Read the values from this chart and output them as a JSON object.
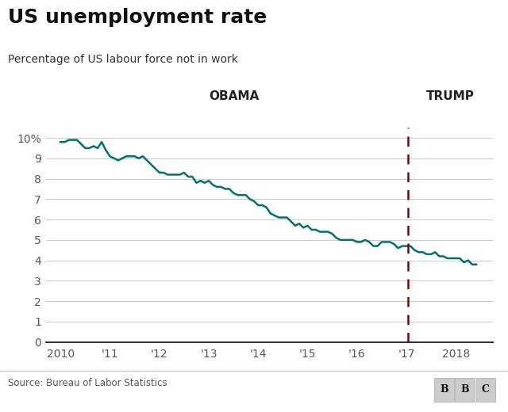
{
  "title": "US unemployment rate",
  "subtitle": "Percentage of US labour force not in work",
  "source": "Source: Bureau of Labor Statistics",
  "line_color": "#007070",
  "divider_color": "#8B0000",
  "obama_label": "OBAMA",
  "trump_label": "TRUMP",
  "trump_start": 2017.04,
  "ylim": [
    0,
    10.5
  ],
  "yticks": [
    0,
    1,
    2,
    3,
    4,
    5,
    6,
    7,
    8,
    9,
    10
  ],
  "ytick_labels": [
    "0",
    "1",
    "2",
    "3",
    "4",
    "5",
    "6",
    "7",
    "8",
    "9",
    "10%"
  ],
  "xtick_positions": [
    2010,
    2011,
    2012,
    2013,
    2014,
    2015,
    2016,
    2017,
    2018
  ],
  "xtick_labels": [
    "2010",
    "'11",
    "'12",
    "'13",
    "'14",
    "'15",
    "'16",
    "'17",
    "2018"
  ],
  "xlim": [
    2009.7,
    2018.75
  ],
  "background_color": "#ffffff",
  "title_fontsize": 18,
  "subtitle_fontsize": 10,
  "tick_fontsize": 10,
  "label_fontsize": 11,
  "data": {
    "dates": [
      2010.0,
      2010.083,
      2010.167,
      2010.25,
      2010.333,
      2010.417,
      2010.5,
      2010.583,
      2010.667,
      2010.75,
      2010.833,
      2010.917,
      2011.0,
      2011.083,
      2011.167,
      2011.25,
      2011.333,
      2011.417,
      2011.5,
      2011.583,
      2011.667,
      2011.75,
      2011.833,
      2011.917,
      2012.0,
      2012.083,
      2012.167,
      2012.25,
      2012.333,
      2012.417,
      2012.5,
      2012.583,
      2012.667,
      2012.75,
      2012.833,
      2012.917,
      2013.0,
      2013.083,
      2013.167,
      2013.25,
      2013.333,
      2013.417,
      2013.5,
      2013.583,
      2013.667,
      2013.75,
      2013.833,
      2013.917,
      2014.0,
      2014.083,
      2014.167,
      2014.25,
      2014.333,
      2014.417,
      2014.5,
      2014.583,
      2014.667,
      2014.75,
      2014.833,
      2014.917,
      2015.0,
      2015.083,
      2015.167,
      2015.25,
      2015.333,
      2015.417,
      2015.5,
      2015.583,
      2015.667,
      2015.75,
      2015.833,
      2015.917,
      2016.0,
      2016.083,
      2016.167,
      2016.25,
      2016.333,
      2016.417,
      2016.5,
      2016.583,
      2016.667,
      2016.75,
      2016.833,
      2016.917,
      2017.0,
      2017.083,
      2017.167,
      2017.25,
      2017.333,
      2017.417,
      2017.5,
      2017.583,
      2017.667,
      2017.75,
      2017.833,
      2017.917,
      2018.0,
      2018.083,
      2018.167,
      2018.25,
      2018.333,
      2018.417
    ],
    "values": [
      9.8,
      9.8,
      9.9,
      9.9,
      9.9,
      9.7,
      9.5,
      9.5,
      9.6,
      9.5,
      9.8,
      9.4,
      9.1,
      9.0,
      8.9,
      9.0,
      9.1,
      9.1,
      9.1,
      9.0,
      9.1,
      8.9,
      8.7,
      8.5,
      8.3,
      8.3,
      8.2,
      8.2,
      8.2,
      8.2,
      8.3,
      8.1,
      8.1,
      7.8,
      7.9,
      7.8,
      7.9,
      7.7,
      7.6,
      7.6,
      7.5,
      7.5,
      7.3,
      7.2,
      7.2,
      7.2,
      7.0,
      6.9,
      6.7,
      6.7,
      6.6,
      6.3,
      6.2,
      6.1,
      6.1,
      6.1,
      5.9,
      5.7,
      5.8,
      5.6,
      5.7,
      5.5,
      5.5,
      5.4,
      5.4,
      5.4,
      5.3,
      5.1,
      5.0,
      5.0,
      5.0,
      5.0,
      4.9,
      4.9,
      5.0,
      4.9,
      4.7,
      4.7,
      4.9,
      4.9,
      4.9,
      4.8,
      4.6,
      4.7,
      4.7,
      4.7,
      4.5,
      4.4,
      4.4,
      4.3,
      4.3,
      4.4,
      4.2,
      4.2,
      4.1,
      4.1,
      4.1,
      4.1,
      3.9,
      4.0,
      3.8,
      3.8
    ]
  }
}
